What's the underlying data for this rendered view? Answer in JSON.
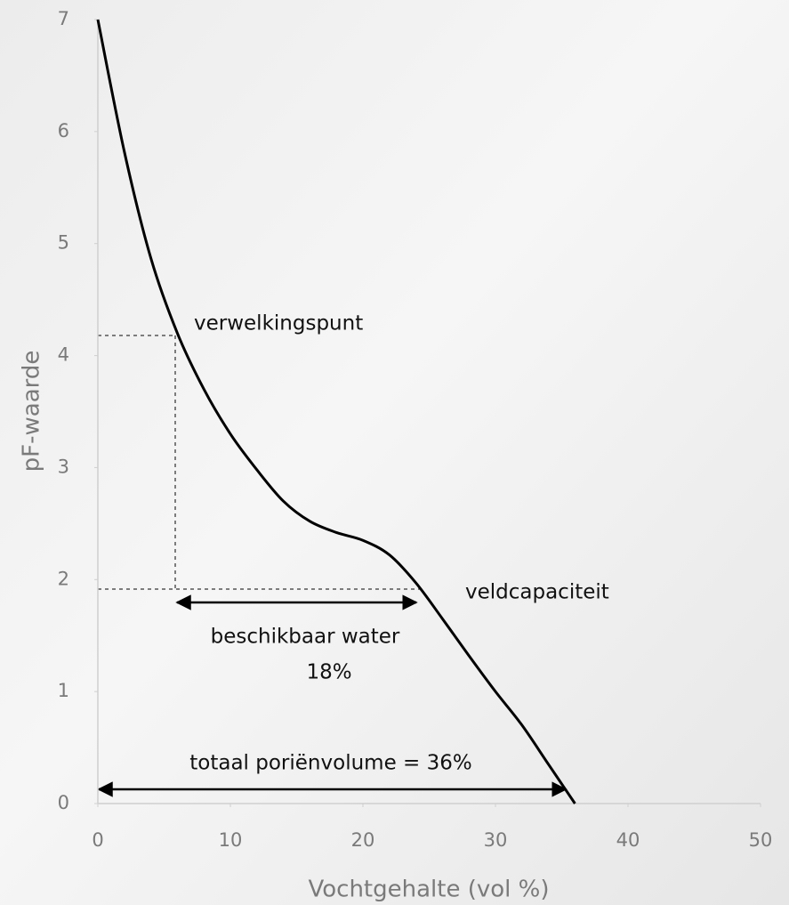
{
  "chart_data": {
    "type": "line",
    "x_label": "Vochtgehalte (vol %)",
    "y_label": "pF-waarde",
    "x": [
      0,
      2,
      4,
      6,
      8,
      10,
      12,
      14,
      16,
      18,
      20,
      22,
      24,
      26,
      28,
      30,
      32,
      34,
      36
    ],
    "series": [
      {
        "color": "#000000",
        "values": [
          7.0,
          5.82,
          4.87,
          4.2,
          3.7,
          3.3,
          2.98,
          2.7,
          2.52,
          2.42,
          2.35,
          2.22,
          1.97,
          1.65,
          1.32,
          1.0,
          0.7,
          0.35,
          0.0
        ]
      }
    ],
    "xlim": [
      0,
      50
    ],
    "xticks": [
      0,
      10,
      20,
      30,
      40,
      50
    ],
    "ylim": [
      0,
      7
    ],
    "yticks": [
      0,
      1,
      2,
      3,
      4,
      5,
      6,
      7
    ],
    "annotations": [
      "verwelkingspunt",
      "veldcapaciteit",
      "beschikbaar water",
      "18%",
      "totaal poriënvolume = 36%"
    ]
  }
}
